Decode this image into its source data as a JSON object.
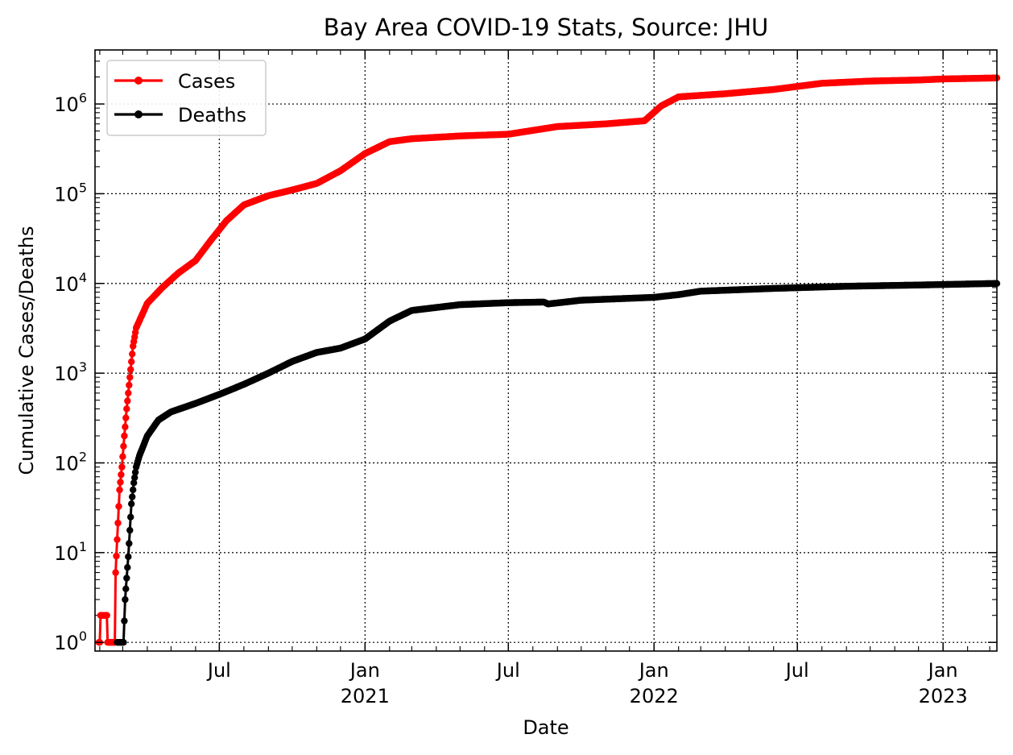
{
  "chart_data": {
    "type": "line",
    "title": "Bay Area COVID-19 Stats, Source: JHU",
    "xlabel": "Date",
    "ylabel": "Cumulative Cases/Deaths",
    "yscale": "log",
    "ylim": [
      0.8,
      4000000
    ],
    "xlim": [
      "2020-01-26",
      "2023-03-10"
    ],
    "grid": true,
    "legend_position": "top-left",
    "x_ticks": [
      {
        "date": "2020-07-01",
        "label": "Jul",
        "sub": ""
      },
      {
        "date": "2021-01-01",
        "label": "Jan",
        "sub": "2021"
      },
      {
        "date": "2021-07-01",
        "label": "Jul",
        "sub": ""
      },
      {
        "date": "2022-01-01",
        "label": "Jan",
        "sub": "2022"
      },
      {
        "date": "2022-07-01",
        "label": "Jul",
        "sub": ""
      },
      {
        "date": "2023-01-01",
        "label": "Jan",
        "sub": "2023"
      }
    ],
    "y_ticks": [
      {
        "value": 1,
        "base": "10",
        "exp": "0"
      },
      {
        "value": 10,
        "base": "10",
        "exp": "1"
      },
      {
        "value": 100,
        "base": "10",
        "exp": "2"
      },
      {
        "value": 1000,
        "base": "10",
        "exp": "3"
      },
      {
        "value": 10000,
        "base": "10",
        "exp": "4"
      },
      {
        "value": 100000,
        "base": "10",
        "exp": "5"
      },
      {
        "value": 1000000,
        "base": "10",
        "exp": "6"
      }
    ],
    "series": [
      {
        "name": "Cases",
        "color": "#ff0000",
        "points": [
          [
            "2020-01-31",
            1
          ],
          [
            "2020-02-02",
            2
          ],
          [
            "2020-02-10",
            2
          ],
          [
            "2020-02-11",
            1
          ],
          [
            "2020-02-20",
            1
          ],
          [
            "2020-02-21",
            6
          ],
          [
            "2020-02-23",
            14
          ],
          [
            "2020-02-26",
            50
          ],
          [
            "2020-02-29",
            90
          ],
          [
            "2020-03-03",
            200
          ],
          [
            "2020-03-06",
            400
          ],
          [
            "2020-03-10",
            900
          ],
          [
            "2020-03-14",
            2000
          ],
          [
            "2020-03-18",
            3200
          ],
          [
            "2020-04-01",
            6000
          ],
          [
            "2020-04-20",
            9000
          ],
          [
            "2020-05-10",
            13000
          ],
          [
            "2020-06-01",
            18000
          ],
          [
            "2020-06-20",
            30000
          ],
          [
            "2020-07-10",
            50000
          ],
          [
            "2020-08-01",
            75000
          ],
          [
            "2020-09-01",
            95000
          ],
          [
            "2020-10-01",
            110000
          ],
          [
            "2020-11-01",
            130000
          ],
          [
            "2020-12-01",
            180000
          ],
          [
            "2021-01-01",
            280000
          ],
          [
            "2021-02-01",
            380000
          ],
          [
            "2021-03-01",
            410000
          ],
          [
            "2021-05-01",
            440000
          ],
          [
            "2021-07-01",
            460000
          ],
          [
            "2021-09-01",
            560000
          ],
          [
            "2021-11-01",
            600000
          ],
          [
            "2021-12-20",
            650000
          ],
          [
            "2022-01-10",
            950000
          ],
          [
            "2022-02-01",
            1200000
          ],
          [
            "2022-04-01",
            1300000
          ],
          [
            "2022-06-01",
            1450000
          ],
          [
            "2022-08-01",
            1700000
          ],
          [
            "2022-10-01",
            1800000
          ],
          [
            "2022-12-01",
            1850000
          ],
          [
            "2023-01-01",
            1900000
          ],
          [
            "2023-03-10",
            1950000
          ]
        ]
      },
      {
        "name": "Deaths",
        "color": "#000000",
        "points": [
          [
            "2020-02-23",
            1
          ],
          [
            "2020-03-02",
            1
          ],
          [
            "2020-03-04",
            3
          ],
          [
            "2020-03-08",
            9
          ],
          [
            "2020-03-12",
            35
          ],
          [
            "2020-03-15",
            60
          ],
          [
            "2020-03-18",
            90
          ],
          [
            "2020-03-22",
            120
          ],
          [
            "2020-04-01",
            200
          ],
          [
            "2020-04-15",
            300
          ],
          [
            "2020-05-01",
            370
          ],
          [
            "2020-06-01",
            460
          ],
          [
            "2020-07-01",
            580
          ],
          [
            "2020-08-01",
            750
          ],
          [
            "2020-09-01",
            1000
          ],
          [
            "2020-10-01",
            1350
          ],
          [
            "2020-11-01",
            1700
          ],
          [
            "2020-12-01",
            1900
          ],
          [
            "2021-01-01",
            2400
          ],
          [
            "2021-02-01",
            3800
          ],
          [
            "2021-03-01",
            5000
          ],
          [
            "2021-05-01",
            5800
          ],
          [
            "2021-07-01",
            6100
          ],
          [
            "2021-08-15",
            6200
          ],
          [
            "2021-08-20",
            5900
          ],
          [
            "2021-10-01",
            6500
          ],
          [
            "2022-01-01",
            7000
          ],
          [
            "2022-02-01",
            7500
          ],
          [
            "2022-03-01",
            8200
          ],
          [
            "2022-06-01",
            8800
          ],
          [
            "2022-09-01",
            9300
          ],
          [
            "2022-12-01",
            9600
          ],
          [
            "2023-03-10",
            10000
          ]
        ]
      }
    ]
  }
}
